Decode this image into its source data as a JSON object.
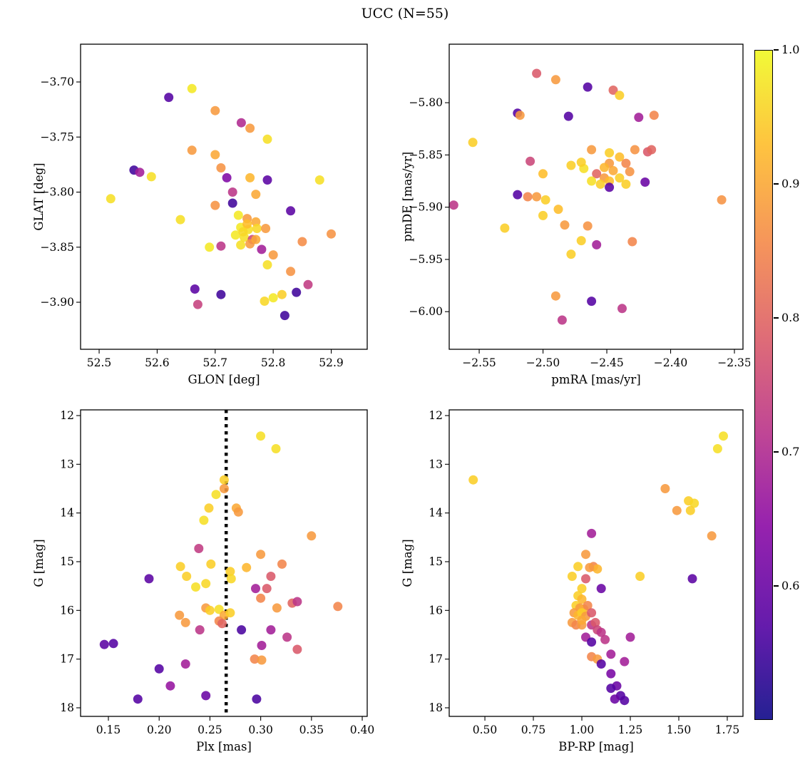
{
  "title": "UCC (N=55)",
  "colorbar": {
    "tick_labels": [
      "1.0",
      "0.9",
      "0.8",
      "0.7",
      "0.6"
    ],
    "tick_values": [
      1.0,
      0.9,
      0.8,
      0.7,
      0.6
    ],
    "vmin": 0.5,
    "vmax": 1.0,
    "gradient_stops": [
      [
        0.0,
        "#0d0887"
      ],
      [
        0.14,
        "#5402a3"
      ],
      [
        0.29,
        "#8b0aa5"
      ],
      [
        0.43,
        "#b93289"
      ],
      [
        0.57,
        "#db5c68"
      ],
      [
        0.71,
        "#f48849"
      ],
      [
        0.86,
        "#febd2a"
      ],
      [
        1.0,
        "#f0f921"
      ]
    ]
  },
  "chart_data": [
    {
      "type": "scatter",
      "xlabel": "GLON [deg]",
      "ylabel": "GLAT [deg]",
      "xlim": [
        52.468,
        52.962
      ],
      "ylim": [
        -3.9427,
        -3.6657
      ],
      "xticks": [
        52.5,
        52.6,
        52.7,
        52.8,
        52.9
      ],
      "xtick_labels": [
        "52.5",
        "52.6",
        "52.7",
        "52.8",
        "52.9"
      ],
      "yticks": [
        -3.7,
        -3.75,
        -3.8,
        -3.85,
        -3.9
      ],
      "ytick_labels": [
        "−3.70",
        "−3.75",
        "−3.80",
        "−3.85",
        "−3.90"
      ],
      "x": [
        52.66,
        52.62,
        52.7,
        52.745,
        52.76,
        52.79,
        52.66,
        52.7,
        52.71,
        52.56,
        52.57,
        52.59,
        52.72,
        52.76,
        52.79,
        52.88,
        52.52,
        52.73,
        52.77,
        52.7,
        52.73,
        52.83,
        52.64,
        52.74,
        52.755,
        52.77,
        52.744,
        52.757,
        52.772,
        52.787,
        52.735,
        52.75,
        52.764,
        52.9,
        52.71,
        52.744,
        52.76,
        52.78,
        52.69,
        52.8,
        52.85,
        52.79,
        52.83,
        52.86,
        52.665,
        52.71,
        52.67,
        52.785,
        52.8,
        52.815,
        52.84,
        52.82,
        52.755,
        52.748,
        52.77
      ],
      "y": [
        -3.706,
        -3.714,
        -3.726,
        -3.737,
        -3.742,
        -3.752,
        -3.762,
        -3.766,
        -3.778,
        -3.78,
        -3.782,
        -3.786,
        -3.787,
        -3.787,
        -3.789,
        -3.789,
        -3.806,
        -3.8,
        -3.802,
        -3.812,
        -3.81,
        -3.817,
        -3.825,
        -3.821,
        -3.824,
        -3.827,
        -3.832,
        -3.834,
        -3.833,
        -3.833,
        -3.839,
        -3.841,
        -3.843,
        -3.838,
        -3.849,
        -3.848,
        -3.847,
        -3.852,
        -3.85,
        -3.857,
        -3.845,
        -3.866,
        -3.872,
        -3.884,
        -3.888,
        -3.893,
        -3.902,
        -3.899,
        -3.896,
        -3.893,
        -3.891,
        -3.912,
        -3.829,
        -3.836,
        -3.843
      ],
      "color": [
        0.98,
        0.57,
        0.88,
        0.7,
        0.88,
        0.97,
        0.88,
        0.9,
        0.87,
        0.55,
        0.68,
        0.97,
        0.63,
        0.92,
        0.58,
        0.97,
        0.97,
        0.72,
        0.9,
        0.87,
        0.55,
        0.58,
        0.97,
        0.98,
        0.88,
        0.9,
        0.98,
        0.97,
        0.96,
        0.88,
        0.98,
        0.97,
        0.75,
        0.87,
        0.72,
        0.97,
        0.88,
        0.68,
        0.98,
        0.88,
        0.86,
        0.97,
        0.87,
        0.73,
        0.58,
        0.55,
        0.74,
        0.96,
        0.98,
        0.95,
        0.55,
        0.55,
        0.93,
        0.96,
        0.9
      ]
    },
    {
      "type": "scatter",
      "xlabel": "pmRA [mas/yr]",
      "ylabel": "pmDE [mas/yr]",
      "xlim": [
        -2.5735,
        -2.3433
      ],
      "ylim": [
        -6.036,
        -5.744
      ],
      "xticks": [
        -2.55,
        -2.5,
        -2.45,
        -2.4,
        -2.35
      ],
      "xtick_labels": [
        "−2.55",
        "−2.50",
        "−2.45",
        "−2.40",
        "−2.35"
      ],
      "yticks": [
        -5.8,
        -5.85,
        -5.9,
        -5.95,
        -6.0
      ],
      "ytick_labels": [
        "−5.80",
        "−5.85",
        "−5.90",
        "−5.95",
        "−6.00"
      ],
      "x": [
        -2.505,
        -2.49,
        -2.465,
        -2.445,
        -2.44,
        -2.52,
        -2.518,
        -2.48,
        -2.425,
        -2.413,
        -2.555,
        -2.462,
        -2.448,
        -2.44,
        -2.428,
        -2.418,
        -2.51,
        -2.478,
        -2.468,
        -2.5,
        -2.458,
        -2.452,
        -2.462,
        -2.455,
        -2.448,
        -2.44,
        -2.432,
        -2.435,
        -2.42,
        -2.448,
        -2.57,
        -2.52,
        -2.512,
        -2.505,
        -2.498,
        -2.36,
        -2.53,
        -2.5,
        -2.488,
        -2.483,
        -2.465,
        -2.47,
        -2.458,
        -2.43,
        -2.478,
        -2.49,
        -2.485,
        -2.462,
        -2.438,
        -2.448,
        -2.452,
        -2.445,
        -2.47,
        -2.435,
        -2.415
      ],
      "y": [
        -5.772,
        -5.778,
        -5.785,
        -5.788,
        -5.793,
        -5.81,
        -5.812,
        -5.813,
        -5.814,
        -5.812,
        -5.838,
        -5.845,
        -5.848,
        -5.852,
        -5.845,
        -5.847,
        -5.856,
        -5.86,
        -5.863,
        -5.868,
        -5.868,
        -5.872,
        -5.875,
        -5.878,
        -5.875,
        -5.872,
        -5.866,
        -5.878,
        -5.876,
        -5.881,
        -5.898,
        -5.888,
        -5.89,
        -5.89,
        -5.893,
        -5.893,
        -5.92,
        -5.908,
        -5.902,
        -5.917,
        -5.918,
        -5.932,
        -5.936,
        -5.933,
        -5.945,
        -5.985,
        -6.008,
        -5.99,
        -5.997,
        -5.858,
        -5.862,
        -5.865,
        -5.857,
        -5.858,
        -5.845
      ],
      "color": [
        0.78,
        0.88,
        0.57,
        0.8,
        0.95,
        0.57,
        0.88,
        0.57,
        0.68,
        0.85,
        0.95,
        0.88,
        0.95,
        0.93,
        0.87,
        0.78,
        0.75,
        0.95,
        0.97,
        0.93,
        0.8,
        0.88,
        0.97,
        0.95,
        0.93,
        0.95,
        0.87,
        0.95,
        0.6,
        0.58,
        0.72,
        0.57,
        0.85,
        0.88,
        0.95,
        0.87,
        0.95,
        0.95,
        0.93,
        0.88,
        0.87,
        0.95,
        0.68,
        0.85,
        0.95,
        0.88,
        0.72,
        0.57,
        0.72,
        0.88,
        0.92,
        0.9,
        0.95,
        0.85,
        0.8
      ]
    },
    {
      "type": "scatter",
      "xlabel": "Plx [mas]",
      "ylabel": "G [mag]",
      "xlim": [
        0.1226,
        0.4049
      ],
      "ylim": [
        18.176,
        11.883
      ],
      "xticks": [
        0.15,
        0.2,
        0.25,
        0.3,
        0.35,
        0.4
      ],
      "xtick_labels": [
        "0.15",
        "0.20",
        "0.25",
        "0.30",
        "0.35",
        "0.40"
      ],
      "yticks": [
        12,
        13,
        14,
        15,
        16,
        17,
        18
      ],
      "ytick_labels": [
        "12",
        "13",
        "14",
        "15",
        "16",
        "17",
        "18"
      ],
      "vline_x": 0.266,
      "x": [
        0.3,
        0.315,
        0.264,
        0.264,
        0.256,
        0.249,
        0.276,
        0.278,
        0.244,
        0.35,
        0.239,
        0.3,
        0.251,
        0.27,
        0.286,
        0.19,
        0.221,
        0.227,
        0.246,
        0.236,
        0.271,
        0.31,
        0.321,
        0.295,
        0.306,
        0.331,
        0.336,
        0.3,
        0.316,
        0.376,
        0.246,
        0.25,
        0.259,
        0.264,
        0.27,
        0.22,
        0.226,
        0.259,
        0.262,
        0.24,
        0.155,
        0.146,
        0.281,
        0.31,
        0.326,
        0.336,
        0.301,
        0.294,
        0.301,
        0.2,
        0.226,
        0.211,
        0.246,
        0.179,
        0.296
      ],
      "y": [
        12.42,
        12.68,
        13.32,
        13.5,
        13.62,
        13.9,
        13.9,
        13.98,
        14.15,
        14.47,
        14.73,
        14.85,
        15.05,
        15.2,
        15.12,
        15.35,
        15.1,
        15.3,
        15.45,
        15.52,
        15.35,
        15.3,
        15.05,
        15.55,
        15.55,
        15.85,
        15.82,
        15.75,
        15.95,
        15.92,
        15.95,
        16.0,
        15.98,
        16.1,
        16.05,
        16.1,
        16.25,
        16.22,
        16.27,
        16.4,
        16.68,
        16.7,
        16.4,
        16.4,
        16.55,
        16.8,
        16.72,
        17.0,
        17.02,
        17.2,
        17.1,
        17.55,
        17.75,
        17.82,
        17.82
      ],
      "color": [
        0.97,
        0.97,
        0.95,
        0.88,
        0.97,
        0.95,
        0.9,
        0.88,
        0.97,
        0.88,
        0.73,
        0.88,
        0.95,
        0.95,
        0.92,
        0.58,
        0.95,
        0.95,
        0.96,
        0.97,
        0.96,
        0.78,
        0.85,
        0.68,
        0.78,
        0.8,
        0.72,
        0.85,
        0.88,
        0.85,
        0.88,
        0.95,
        0.97,
        0.9,
        0.95,
        0.88,
        0.88,
        0.85,
        0.8,
        0.72,
        0.57,
        0.58,
        0.56,
        0.68,
        0.72,
        0.78,
        0.68,
        0.85,
        0.88,
        0.57,
        0.68,
        0.66,
        0.6,
        0.57,
        0.56
      ]
    },
    {
      "type": "scatter",
      "xlabel": "BP-RP [mag]",
      "ylabel": "G [mag]",
      "xlim": [
        0.316,
        1.831
      ],
      "ylim": [
        18.176,
        11.883
      ],
      "xticks": [
        0.5,
        0.75,
        1.0,
        1.25,
        1.5,
        1.75
      ],
      "xtick_labels": [
        "0.50",
        "0.75",
        "1.00",
        "1.25",
        "1.50",
        "1.75"
      ],
      "yticks": [
        12,
        13,
        14,
        15,
        16,
        17,
        18
      ],
      "ytick_labels": [
        "12",
        "13",
        "14",
        "15",
        "16",
        "17",
        "18"
      ],
      "x": [
        1.73,
        1.7,
        0.44,
        1.43,
        1.55,
        1.58,
        1.49,
        1.56,
        1.67,
        1.05,
        1.02,
        0.98,
        1.06,
        1.08,
        0.95,
        1.02,
        1.3,
        1.57,
        1.1,
        1.0,
        0.98,
        1.0,
        0.97,
        0.99,
        1.01,
        1.03,
        0.96,
        0.98,
        1.0,
        1.02,
        1.05,
        0.95,
        0.97,
        1.0,
        1.05,
        1.07,
        1.08,
        1.1,
        1.02,
        1.05,
        1.12,
        1.25,
        1.05,
        1.08,
        1.1,
        1.15,
        1.22,
        1.15,
        1.18,
        1.15,
        1.2,
        1.17,
        1.22,
        1.04,
        1.0
      ],
      "y": [
        12.42,
        12.68,
        13.32,
        13.5,
        13.75,
        13.8,
        13.95,
        13.95,
        14.47,
        14.42,
        14.85,
        15.1,
        15.1,
        15.15,
        15.3,
        15.35,
        15.3,
        15.35,
        15.55,
        15.55,
        15.7,
        15.77,
        15.9,
        15.95,
        15.97,
        15.9,
        16.05,
        16.1,
        16.05,
        16.12,
        16.05,
        16.25,
        16.3,
        16.3,
        16.3,
        16.25,
        16.4,
        16.45,
        16.55,
        16.65,
        16.6,
        16.55,
        16.95,
        17.0,
        17.1,
        16.9,
        17.05,
        17.3,
        17.55,
        17.6,
        17.75,
        17.82,
        17.85,
        15.12,
        16.2
      ],
      "color": [
        0.97,
        0.97,
        0.95,
        0.88,
        0.95,
        0.96,
        0.88,
        0.95,
        0.88,
        0.68,
        0.88,
        0.95,
        0.85,
        0.92,
        0.95,
        0.78,
        0.95,
        0.58,
        0.6,
        0.95,
        0.95,
        0.92,
        0.95,
        0.88,
        0.9,
        0.85,
        0.88,
        0.92,
        0.95,
        0.88,
        0.78,
        0.88,
        0.85,
        0.88,
        0.72,
        0.78,
        0.75,
        0.72,
        0.68,
        0.57,
        0.72,
        0.68,
        0.85,
        0.88,
        0.57,
        0.68,
        0.68,
        0.62,
        0.6,
        0.57,
        0.57,
        0.6,
        0.57,
        0.88,
        0.9
      ]
    }
  ]
}
